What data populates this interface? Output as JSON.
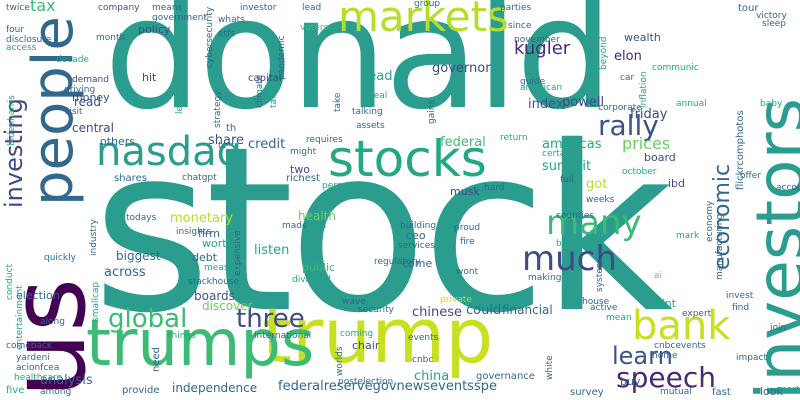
{
  "palette": {
    "teal": "#2a9d8e",
    "green": "#3cbb75",
    "lime": "#b5de2b",
    "yellowgreen": "#c8e020",
    "blue": "#3b528b",
    "indigo": "#3e4a89",
    "purple": "#482878",
    "darkpurple": "#440154",
    "seagreen": "#22a884",
    "cyan": "#1f968b",
    "steel": "#31688e",
    "mint": "#6ccd5a",
    "lightgreen": "#7ad151"
  },
  "words": [
    "stock",
    "donald",
    "us",
    "investors",
    "trump",
    "trumps",
    "people",
    "stocks",
    "markets",
    "bank",
    "nasdaq",
    "much",
    "many",
    "rally",
    "speech",
    "economic",
    "investing",
    "global",
    "three",
    "learn",
    "kugler",
    "index",
    "americas",
    "prices",
    "governor",
    "powell",
    "friday",
    "federal",
    "head",
    "credit",
    "share",
    "central",
    "summit",
    "got",
    "could",
    "monetary",
    "firm",
    "listen",
    "china",
    "wealth",
    "elon",
    "financial",
    "federalreservegovnewseventsspe",
    "boards",
    "across",
    "independence",
    "analysis",
    "ceo",
    "public",
    "come",
    "biggest",
    "health",
    "board",
    "ibd",
    "mark",
    "tour",
    "victory",
    "sleep",
    "twice",
    "tax",
    "company",
    "means",
    "government",
    "cybersecurity",
    "whats",
    "investor",
    "voters",
    "lead",
    "group",
    "parties",
    "four",
    "disclosure",
    "access",
    "decade",
    "month",
    "policy",
    "etfs",
    "pandemic",
    "demand",
    "driving",
    "capital",
    "since",
    "november",
    "beyond",
    "communic",
    "read",
    "money",
    "hit",
    "leaders",
    "climate",
    "tariffs",
    "guide",
    "american",
    "car",
    "inflation",
    "visit",
    "strategy",
    "deal",
    "talking",
    "assets",
    "gains",
    "corporate",
    "annual",
    "baby",
    "others",
    "might",
    "requires",
    "two",
    "richest",
    "return",
    "october",
    "certain",
    "flickrcomphotos",
    "offer",
    "account",
    "chatgpt",
    "shares",
    "personal",
    "hard",
    "musk",
    "full",
    "inside",
    "weeks",
    "industry",
    "todays",
    "insights",
    "made",
    "data",
    "building",
    "proud",
    "fire",
    "counties",
    "behind",
    "manufacturing",
    "economy",
    "conduct",
    "quickly",
    "expensive",
    "worth",
    "debt",
    "measure",
    "stackhouse",
    "discover",
    "dividend",
    "regulatory",
    "services",
    "wont",
    "making",
    "system",
    "ai",
    "election",
    "smallcap",
    "wave",
    "private",
    "house",
    "point",
    "expert",
    "invest",
    "find",
    "entertainment",
    "along",
    "security",
    "chinese",
    "active",
    "mean",
    "join",
    "comeback",
    "things",
    "international",
    "coming",
    "chair",
    "events",
    "cnbcevents",
    "impact",
    "yardeni",
    "acionfcea",
    "healthcare",
    "worlds",
    "postelection",
    "cnbc",
    "home",
    "white",
    "buy",
    "look",
    "five",
    "among",
    "provide",
    "need",
    "governance",
    "survey",
    "mutual",
    "fast",
    "mortgage",
    "tc",
    "th",
    "take",
    "bidenharris"
  ]
}
